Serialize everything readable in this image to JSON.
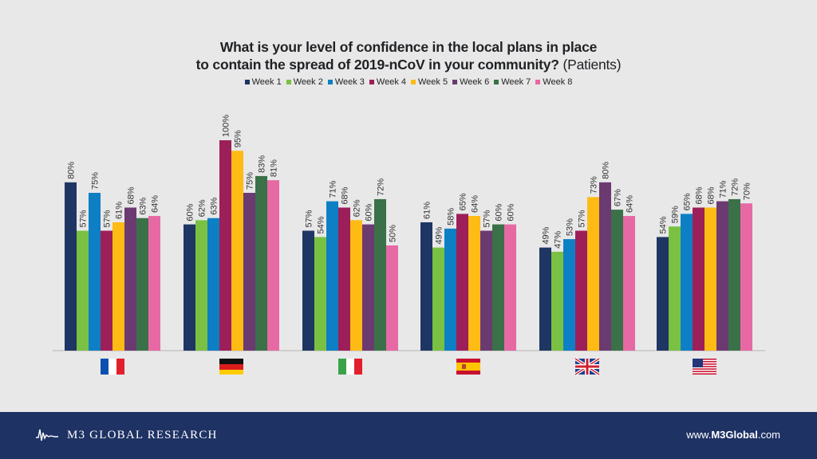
{
  "title": {
    "line1": "What is your level of confidence in the local plans in place",
    "line2": "to contain the spread of 2019-nCoV in your community?",
    "suffix": "(Patients)"
  },
  "footer": {
    "brand": "M3  GLOBAL RESEARCH",
    "site_prefix": "www.",
    "site_brand": "M3Global",
    "site_suffix": ".com"
  },
  "chart_data": {
    "type": "bar",
    "categories": [
      "France",
      "Germany",
      "Italy",
      "Spain",
      "United Kingdom",
      "United States"
    ],
    "category_icons": [
      "flag-france-icon",
      "flag-germany-icon",
      "flag-italy-icon",
      "flag-spain-icon",
      "flag-uk-icon",
      "flag-usa-icon"
    ],
    "series": [
      {
        "name": "Week 1",
        "color": "#1f3564",
        "values": [
          80,
          60,
          57,
          61,
          49,
          54
        ]
      },
      {
        "name": "Week 2",
        "color": "#7ac143",
        "values": [
          57,
          62,
          54,
          49,
          47,
          59
        ]
      },
      {
        "name": "Week 3",
        "color": "#0d7fc4",
        "values": [
          75,
          63,
          71,
          58,
          53,
          65
        ]
      },
      {
        "name": "Week 4",
        "color": "#9c1f5a",
        "values": [
          57,
          100,
          68,
          65,
          57,
          68
        ]
      },
      {
        "name": "Week 5",
        "color": "#fdbb14",
        "values": [
          61,
          95,
          62,
          64,
          73,
          68
        ]
      },
      {
        "name": "Week 6",
        "color": "#6b3a70",
        "values": [
          68,
          75,
          60,
          57,
          80,
          71
        ]
      },
      {
        "name": "Week 7",
        "color": "#3a7148",
        "values": [
          63,
          83,
          72,
          60,
          67,
          72
        ]
      },
      {
        "name": "Week 8",
        "color": "#e769a4",
        "values": [
          64,
          81,
          50,
          60,
          64,
          70
        ]
      }
    ],
    "value_suffix": "%",
    "ylim": [
      0,
      100
    ],
    "grid": false,
    "legend_position": "top-center",
    "xlabel": "",
    "ylabel": ""
  }
}
